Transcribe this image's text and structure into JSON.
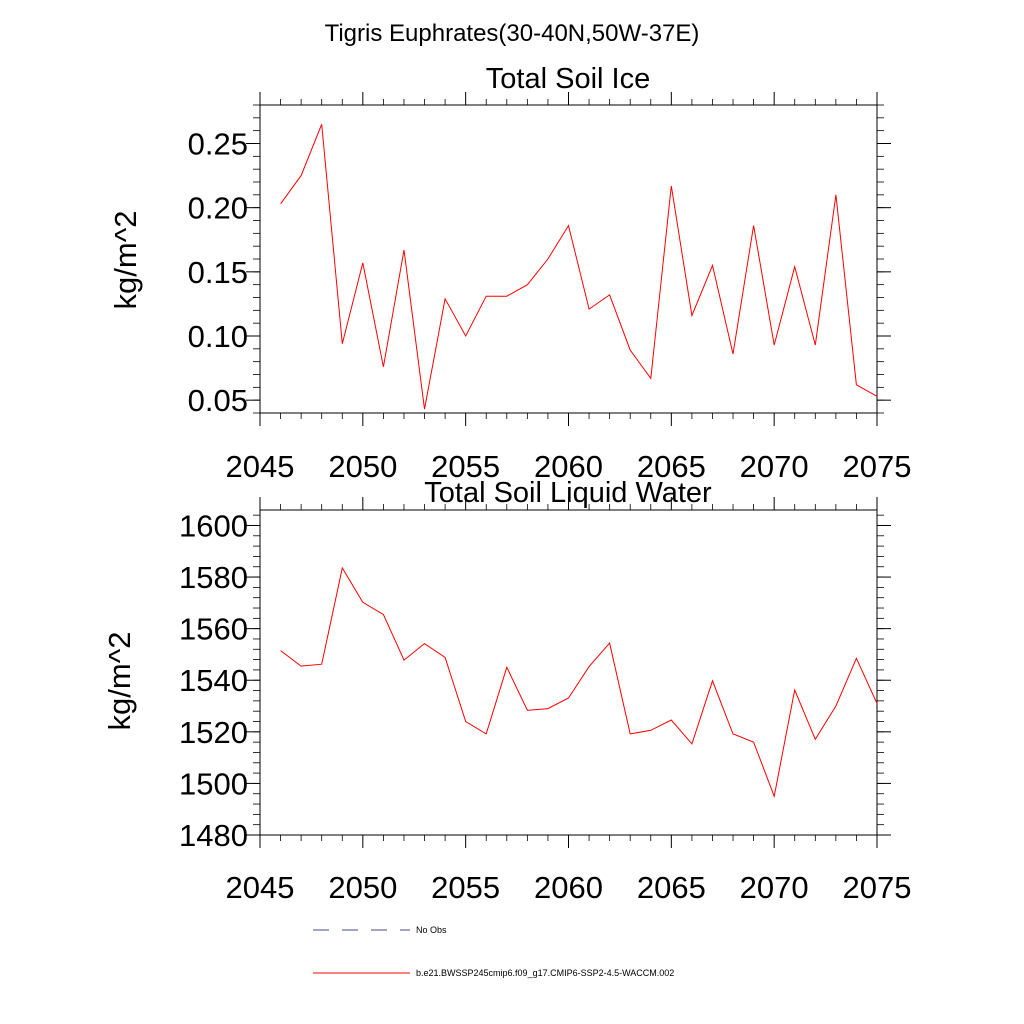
{
  "figure_title": "Tigris Euphrates(30-40N,50W-37E)",
  "chart_data": [
    {
      "type": "line",
      "title": "Total Soil Ice",
      "xlabel": "",
      "ylabel": "kg/m^2",
      "xlim": [
        2045,
        2075
      ],
      "ylim": [
        0.04,
        0.28
      ],
      "x_ticks": [
        "2045",
        "2050",
        "2055",
        "2060",
        "2065",
        "2070",
        "2075"
      ],
      "y_ticks": [
        "0.05",
        "0.10",
        "0.15",
        "0.20",
        "0.25"
      ],
      "x": [
        2046,
        2047,
        2048,
        2049,
        2050,
        2051,
        2052,
        2053,
        2054,
        2055,
        2056,
        2057,
        2058,
        2059,
        2060,
        2061,
        2062,
        2063,
        2064,
        2065,
        2066,
        2067,
        2068,
        2069,
        2070,
        2071,
        2072,
        2073,
        2074,
        2075
      ],
      "series": [
        {
          "name": "b.e21.BWSSP245cmip6.f09_g17.CMIP6-SSP2-4.5-WACCM.002",
          "color": "#ff0000",
          "values": [
            0.203,
            0.225,
            0.265,
            0.094,
            0.157,
            0.076,
            0.167,
            0.043,
            0.129,
            0.1,
            0.131,
            0.131,
            0.14,
            0.16,
            0.186,
            0.121,
            0.132,
            0.089,
            0.067,
            0.217,
            0.116,
            0.155,
            0.086,
            0.186,
            0.093,
            0.154,
            0.093,
            0.21,
            0.062,
            0.053
          ]
        }
      ],
      "grid": false
    },
    {
      "type": "line",
      "title": "Total Soil Liquid Water",
      "xlabel": "",
      "ylabel": "kg/m^2",
      "xlim": [
        2045,
        2075
      ],
      "ylim": [
        1480,
        1606
      ],
      "x_ticks": [
        "2045",
        "2050",
        "2055",
        "2060",
        "2065",
        "2070",
        "2075"
      ],
      "y_ticks": [
        "1480",
        "1500",
        "1520",
        "1540",
        "1560",
        "1580",
        "1600"
      ],
      "x": [
        2046,
        2047,
        2048,
        2049,
        2050,
        2051,
        2052,
        2053,
        2054,
        2055,
        2056,
        2057,
        2058,
        2059,
        2060,
        2061,
        2062,
        2063,
        2064,
        2065,
        2066,
        2067,
        2068,
        2069,
        2070,
        2071,
        2072,
        2073,
        2074,
        2075
      ],
      "series": [
        {
          "name": "b.e21.BWSSP245cmip6.f09_g17.CMIP6-SSP2-4.5-WACCM.002",
          "color": "#ff0000",
          "values": [
            1551.5,
            1545.5,
            1546.2,
            1583.5,
            1570.2,
            1565.5,
            1547.8,
            1554.2,
            1548.8,
            1524.0,
            1519.2,
            1545.0,
            1528.3,
            1529.0,
            1533.1,
            1545.3,
            1554.4,
            1519.2,
            1520.6,
            1524.6,
            1515.3,
            1539.8,
            1519.2,
            1516.0,
            1495.0,
            1536.2,
            1517.1,
            1530.0,
            1548.5,
            1531.0
          ]
        }
      ],
      "grid": false
    }
  ],
  "legend": {
    "items": [
      {
        "label": "No Obs",
        "color": "#4a4a8a",
        "style": "dashed"
      },
      {
        "label": "b.e21.BWSSP245cmip6.f09_g17.CMIP6-SSP2-4.5-WACCM.002",
        "color": "#ff0000",
        "style": "solid"
      }
    ]
  }
}
